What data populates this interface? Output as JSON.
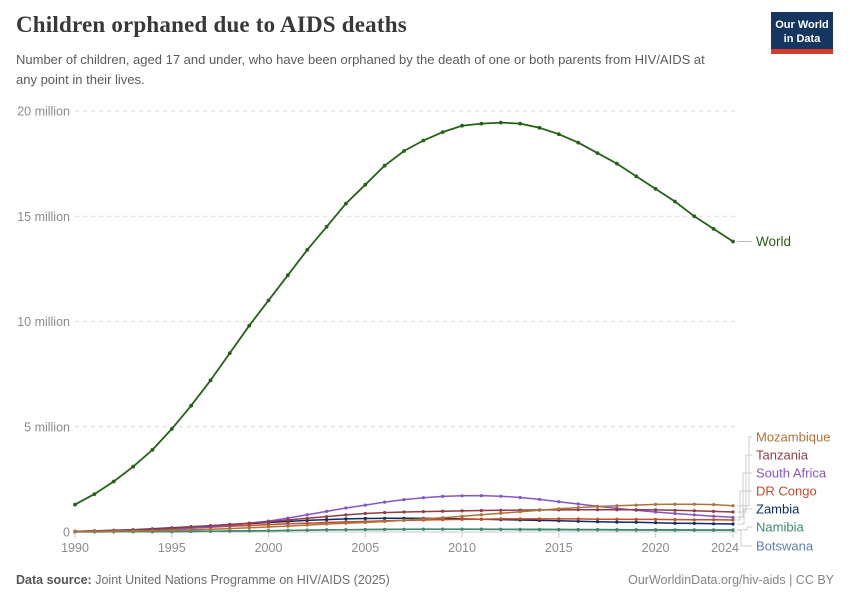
{
  "header": {
    "title": "Children orphaned due to AIDS deaths",
    "subtitle": "Number of children, aged 17 and under, who have been orphaned by the death of one or both parents from HIV/AIDS at any point in their lives.",
    "logo": {
      "line1": "Our World",
      "line2": "in Data",
      "bg_color": "#15375f",
      "stripe_color": "#d43b2b"
    }
  },
  "chart_data": {
    "type": "line",
    "title": "Children orphaned due to AIDS deaths",
    "unit": "million",
    "ylim": [
      0,
      20
    ],
    "grid": "horizontal-dashed",
    "legend_position": "right-edge-labels",
    "x": [
      1990,
      1991,
      1992,
      1993,
      1994,
      1995,
      1996,
      1997,
      1998,
      1999,
      2000,
      2001,
      2002,
      2003,
      2004,
      2005,
      2006,
      2007,
      2008,
      2009,
      2010,
      2011,
      2012,
      2013,
      2014,
      2015,
      2016,
      2017,
      2018,
      2019,
      2020,
      2021,
      2022,
      2023,
      2024
    ],
    "x_tick_labels": [
      "1990",
      "1995",
      "2000",
      "2005",
      "2010",
      "2015",
      "2020",
      "2024"
    ],
    "y_ticks": [
      {
        "value": 0,
        "label": "0"
      },
      {
        "value": 5,
        "label": "5 million"
      },
      {
        "value": 10,
        "label": "10 million"
      },
      {
        "value": 15,
        "label": "15 million"
      },
      {
        "value": 20,
        "label": "20 million"
      }
    ],
    "series": [
      {
        "name": "World",
        "color": "#256117",
        "values": [
          1.3,
          1.8,
          2.4,
          3.1,
          3.9,
          4.9,
          6.0,
          7.2,
          8.5,
          9.8,
          11.0,
          12.2,
          13.4,
          14.5,
          15.6,
          16.5,
          17.4,
          18.1,
          18.6,
          19.0,
          19.3,
          19.4,
          19.45,
          19.4,
          19.2,
          18.9,
          18.5,
          18.0,
          17.5,
          16.9,
          16.3,
          15.7,
          15.0,
          14.4,
          13.8
        ]
      },
      {
        "name": "Mozambique",
        "color": "#ae7339",
        "values": [
          0.02,
          0.03,
          0.04,
          0.05,
          0.06,
          0.08,
          0.1,
          0.13,
          0.16,
          0.2,
          0.24,
          0.28,
          0.33,
          0.38,
          0.42,
          0.45,
          0.5,
          0.56,
          0.62,
          0.68,
          0.75,
          0.82,
          0.89,
          0.96,
          1.03,
          1.1,
          1.16,
          1.21,
          1.25,
          1.28,
          1.31,
          1.32,
          1.32,
          1.3,
          1.25
        ]
      },
      {
        "name": "Tanzania",
        "color": "#923a45",
        "values": [
          0.03,
          0.05,
          0.07,
          0.1,
          0.14,
          0.18,
          0.24,
          0.3,
          0.36,
          0.42,
          0.48,
          0.57,
          0.65,
          0.73,
          0.81,
          0.88,
          0.92,
          0.95,
          0.97,
          0.99,
          1.0,
          1.02,
          1.03,
          1.04,
          1.05,
          1.05,
          1.06,
          1.06,
          1.06,
          1.06,
          1.05,
          1.03,
          1.01,
          0.98,
          0.95
        ]
      },
      {
        "name": "South Africa",
        "color": "#8456c6",
        "values": [
          0.02,
          0.03,
          0.05,
          0.07,
          0.09,
          0.12,
          0.17,
          0.24,
          0.32,
          0.42,
          0.52,
          0.66,
          0.82,
          0.98,
          1.14,
          1.28,
          1.42,
          1.54,
          1.63,
          1.69,
          1.72,
          1.73,
          1.7,
          1.64,
          1.55,
          1.44,
          1.33,
          1.22,
          1.12,
          1.03,
          0.95,
          0.88,
          0.81,
          0.75,
          0.7
        ]
      },
      {
        "name": "DR Congo",
        "color": "#c54b29",
        "values": [
          0.03,
          0.04,
          0.06,
          0.08,
          0.11,
          0.15,
          0.19,
          0.23,
          0.27,
          0.31,
          0.35,
          0.39,
          0.42,
          0.45,
          0.48,
          0.5,
          0.53,
          0.55,
          0.57,
          0.59,
          0.6,
          0.61,
          0.62,
          0.62,
          0.62,
          0.62,
          0.62,
          0.61,
          0.61,
          0.6,
          0.6,
          0.59,
          0.58,
          0.58,
          0.57
        ]
      },
      {
        "name": "Zambia",
        "color": "#0a2d63",
        "values": [
          0.03,
          0.05,
          0.08,
          0.11,
          0.15,
          0.2,
          0.25,
          0.3,
          0.35,
          0.4,
          0.45,
          0.5,
          0.55,
          0.59,
          0.62,
          0.64,
          0.65,
          0.65,
          0.65,
          0.64,
          0.62,
          0.61,
          0.59,
          0.57,
          0.55,
          0.53,
          0.51,
          0.49,
          0.47,
          0.46,
          0.44,
          0.42,
          0.41,
          0.39,
          0.38
        ]
      },
      {
        "name": "Namibia",
        "color": "#3c8c68",
        "values": [
          0.005,
          0.007,
          0.01,
          0.013,
          0.016,
          0.02,
          0.03,
          0.04,
          0.05,
          0.055,
          0.06,
          0.075,
          0.09,
          0.1,
          0.11,
          0.12,
          0.13,
          0.135,
          0.14,
          0.14,
          0.14,
          0.14,
          0.135,
          0.13,
          0.13,
          0.125,
          0.12,
          0.12,
          0.115,
          0.11,
          0.11,
          0.105,
          0.1,
          0.1,
          0.1
        ]
      },
      {
        "name": "Botswana",
        "color": "#5b7fb5",
        "values": [
          0.004,
          0.006,
          0.008,
          0.011,
          0.015,
          0.02,
          0.025,
          0.032,
          0.04,
          0.048,
          0.055,
          0.07,
          0.085,
          0.1,
          0.11,
          0.115,
          0.12,
          0.125,
          0.13,
          0.13,
          0.13,
          0.125,
          0.12,
          0.115,
          0.11,
          0.105,
          0.1,
          0.1,
          0.095,
          0.09,
          0.09,
          0.085,
          0.085,
          0.08,
          0.08
        ]
      }
    ]
  },
  "footer": {
    "source_label": "Data source:",
    "source_value": "Joint United Nations Programme on HIV/AIDS (2025)",
    "link": "OurWorldinData.org/hiv-aids | CC BY"
  }
}
